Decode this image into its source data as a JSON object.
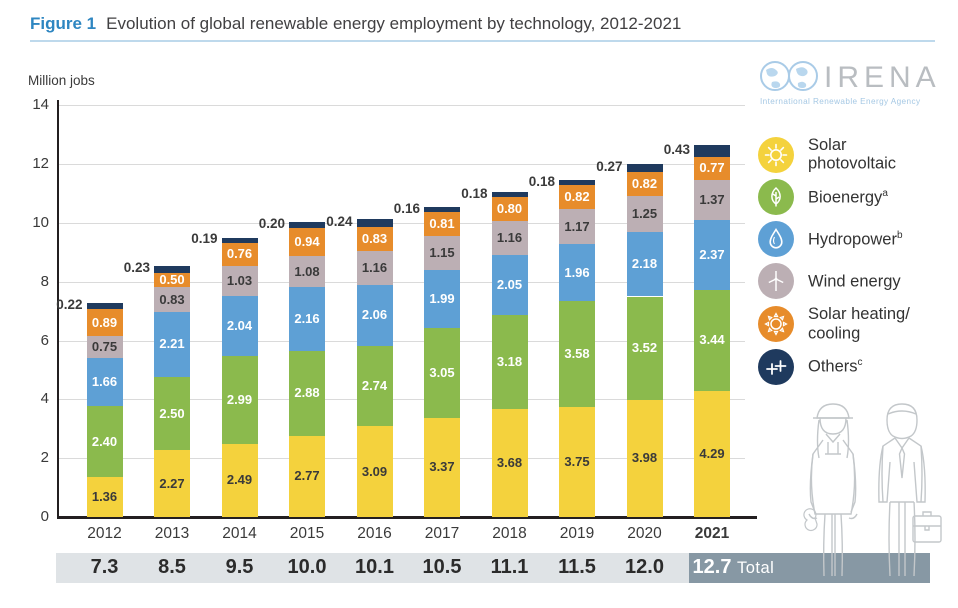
{
  "figure": {
    "label": "Figure 1",
    "title": "Evolution of global renewable energy employment by technology, 2012-2021"
  },
  "logo": {
    "wordmark": "IRENA",
    "tagline": "International Renewable Energy Agency"
  },
  "chart_data": {
    "type": "bar",
    "stacked": true,
    "title": "Evolution of global renewable energy employment by technology, 2012-2021",
    "ylabel": "Million jobs",
    "ylim": [
      0,
      14
    ],
    "yticks": [
      0,
      2,
      4,
      6,
      8,
      10,
      12,
      14
    ],
    "grid": true,
    "legend_position": "right",
    "categories": [
      "2012",
      "2013",
      "2014",
      "2015",
      "2016",
      "2017",
      "2018",
      "2019",
      "2020",
      "2021"
    ],
    "series": [
      {
        "name": "Solar photovoltaic",
        "sup": "",
        "color": "#F4D23D",
        "label_style": "dark",
        "values": [
          1.36,
          2.27,
          2.49,
          2.77,
          3.09,
          3.37,
          3.68,
          3.75,
          3.98,
          4.29
        ]
      },
      {
        "name": "Bioenergy",
        "sup": "a",
        "color": "#8BBA4D",
        "label_style": "white",
        "values": [
          2.4,
          2.5,
          2.99,
          2.88,
          2.74,
          3.05,
          3.18,
          3.58,
          3.52,
          3.44
        ]
      },
      {
        "name": "Hydropower",
        "sup": "b",
        "color": "#5EA0D5",
        "label_style": "white",
        "values": [
          1.66,
          2.21,
          2.04,
          2.16,
          2.06,
          1.99,
          2.05,
          1.96,
          2.18,
          2.37
        ]
      },
      {
        "name": "Wind energy",
        "sup": "",
        "color": "#BCAFB4",
        "label_style": "dark",
        "values": [
          0.75,
          0.83,
          1.03,
          1.08,
          1.16,
          1.15,
          1.16,
          1.17,
          1.25,
          1.37
        ]
      },
      {
        "name": "Solar heating/ cooling",
        "sup": "",
        "color": "#E78C2B",
        "label_style": "white",
        "values": [
          0.89,
          0.5,
          0.76,
          0.94,
          0.83,
          0.81,
          0.8,
          0.82,
          0.82,
          0.77
        ]
      },
      {
        "name": "Others",
        "sup": "c",
        "color": "#1F3A5E",
        "label_style": "outside",
        "values": [
          0.22,
          0.23,
          0.19,
          0.2,
          0.24,
          0.16,
          0.18,
          0.18,
          0.27,
          0.43
        ]
      }
    ],
    "totals": [
      "7.3",
      "8.5",
      "9.5",
      "10.0",
      "10.1",
      "10.5",
      "11.1",
      "11.5",
      "12.0",
      "12.7"
    ],
    "total_label": "Total"
  },
  "legend": {
    "items": [
      {
        "label": "Solar photovoltaic",
        "sup": "",
        "icon": "sun-icon",
        "color": "#F4D23D"
      },
      {
        "label": "Bioenergy",
        "sup": "a",
        "icon": "leaf-icon",
        "color": "#8BBA4D"
      },
      {
        "label": "Hydropower",
        "sup": "b",
        "icon": "droplet-icon",
        "color": "#5EA0D5"
      },
      {
        "label": "Wind energy",
        "sup": "",
        "icon": "wind-turbine-icon",
        "color": "#BCAFB4"
      },
      {
        "label": "Solar heating/ cooling",
        "sup": "",
        "icon": "sun-heating-icon",
        "color": "#E78C2B"
      },
      {
        "label": "Others",
        "sup": "c",
        "icon": "plus-plus-icon",
        "color": "#1F3A5E"
      }
    ]
  }
}
